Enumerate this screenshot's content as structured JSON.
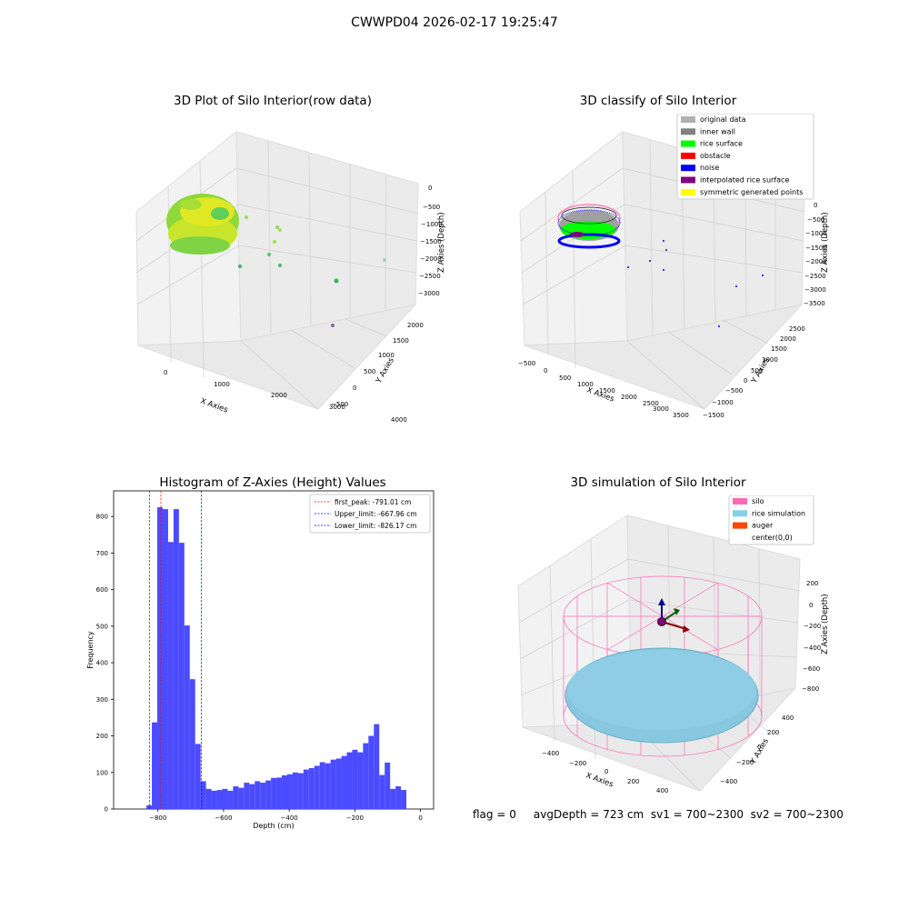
{
  "suptitle": "CWWPD04 2026-02-17 19:25:47",
  "footer": "flag = 0     avgDepth = 723 cm  sv1 = 700~2300  sv2 = 700~2300",
  "colors": {
    "original": "#b0b0b0",
    "inner_wall": "#808080",
    "rice_surface": "#00ff00",
    "obstacle": "#ff0000",
    "noise": "#0000ff",
    "interp": "#800080",
    "sym": "#ffff00",
    "silo": "#ff69b4",
    "rice_sim": "#87ceeb",
    "auger": "#ff4500",
    "hist": "#4b4bff"
  },
  "chart_data": [
    {
      "type": "scatter",
      "title": "3D Plot of Silo Interior(row data)",
      "xlabel": "X Axies",
      "ylabel": "Y Axies",
      "zlabel": "Z Axies (Depth)",
      "xticks": [
        "0",
        "1000",
        "2000",
        "3000",
        "4000"
      ],
      "yticks": [
        "−500",
        "0",
        "500",
        "1000",
        "1500",
        "2000"
      ],
      "zticks": [
        "0",
        "−500",
        "−1000",
        "−1500",
        "−2000",
        "−2500",
        "−3000"
      ]
    },
    {
      "type": "scatter",
      "title": "3D classify of Silo Interior",
      "xlabel": "X Axies",
      "ylabel": "Y Axies",
      "zlabel": "Z Axies (Depth)",
      "xticks": [
        "−500",
        "0",
        "500",
        "1000",
        "1500",
        "2000",
        "2500",
        "3000",
        "3500"
      ],
      "yticks": [
        "−1500",
        "−1000",
        "−500",
        "0",
        "500",
        "1000",
        "1500",
        "2000",
        "2500"
      ],
      "zticks": [
        "0",
        "−500",
        "−1000",
        "−1500",
        "−2000",
        "−2500",
        "−3000",
        "−3500"
      ],
      "legend": [
        {
          "name": "original data",
          "color": "#b0b0b0"
        },
        {
          "name": "inner wall",
          "color": "#808080"
        },
        {
          "name": "rice surface",
          "color": "#00ff00"
        },
        {
          "name": "obstacle",
          "color": "#ff0000"
        },
        {
          "name": "noise",
          "color": "#0000ff"
        },
        {
          "name": "interpolated rice surface",
          "color": "#800080"
        },
        {
          "name": "symmetric generated points",
          "color": "#ffff00"
        }
      ]
    },
    {
      "type": "bar",
      "title": "Histogram of Z-Axies (Height) Values",
      "xlabel": "Depth (cm)",
      "ylabel": "Frequency",
      "xlim": [
        -935,
        40
      ],
      "ylim": [
        0,
        870
      ],
      "bin_width": 16.5,
      "bin_start": [
        -835,
        -818.5,
        -802,
        -785.5,
        -769,
        -752.5,
        -736,
        -719.5,
        -703,
        -686.5,
        -670,
        -653.5,
        -637,
        -620.5,
        -604,
        -587.5,
        -571,
        -554.5,
        -538,
        -521.5,
        -505,
        -488.5,
        -472,
        -455.5,
        -439,
        -422.5,
        -406,
        -389.5,
        -373,
        -356.5,
        -340,
        -323.5,
        -307,
        -290.5,
        -274,
        -257.5,
        -241,
        -224.5,
        -208,
        -191.5,
        -175,
        -158.5,
        -142,
        -125.5,
        -109,
        -92.5,
        -76,
        -59.5,
        -43,
        -26.5
      ],
      "values": [
        10,
        237,
        825,
        820,
        730,
        820,
        728,
        502,
        355,
        178,
        76,
        55,
        50,
        52,
        55,
        50,
        62,
        58,
        72,
        68,
        76,
        72,
        78,
        85,
        86,
        92,
        95,
        100,
        98,
        108,
        112,
        118,
        128,
        125,
        135,
        138,
        145,
        155,
        162,
        155,
        180,
        200,
        232,
        93,
        127,
        55,
        62,
        52,
        0,
        0
      ],
      "xticks": [
        -800,
        -600,
        -400,
        -200,
        0
      ],
      "xtick_labels": [
        "−800",
        "−600",
        "−400",
        "−200",
        "0"
      ],
      "yticks": [
        0,
        100,
        200,
        300,
        400,
        500,
        600,
        700,
        800
      ],
      "lines": [
        {
          "label": "first_peak: -791.01 cm",
          "x": -791.01,
          "color": "#ff0000"
        },
        {
          "label": "Upper_limit: -667.96 cm",
          "x": -667.96,
          "color": "#0000ff"
        },
        {
          "label": "Lower_limit: -826.17 cm",
          "x": -826.17,
          "color": "#0000ff"
        }
      ]
    },
    {
      "type": "scatter",
      "title": "3D simulation of Silo Interior",
      "xlabel": "X Axies",
      "ylabel": "Y Axies",
      "zlabel": "Z Axies (Depth)",
      "xticks": [
        "−400",
        "−200",
        "0",
        "200",
        "400"
      ],
      "yticks": [
        "−400",
        "−200",
        "0",
        "200",
        "400"
      ],
      "zticks": [
        "200",
        "0",
        "−200",
        "−400",
        "−600",
        "−800"
      ],
      "legend": [
        {
          "name": "silo",
          "color": "#ff69b4"
        },
        {
          "name": "rice simulation",
          "color": "#87ceeb"
        },
        {
          "name": "auger",
          "color": "#ff4500"
        },
        {
          "name": "center(0,0)",
          "color": ""
        }
      ]
    }
  ]
}
